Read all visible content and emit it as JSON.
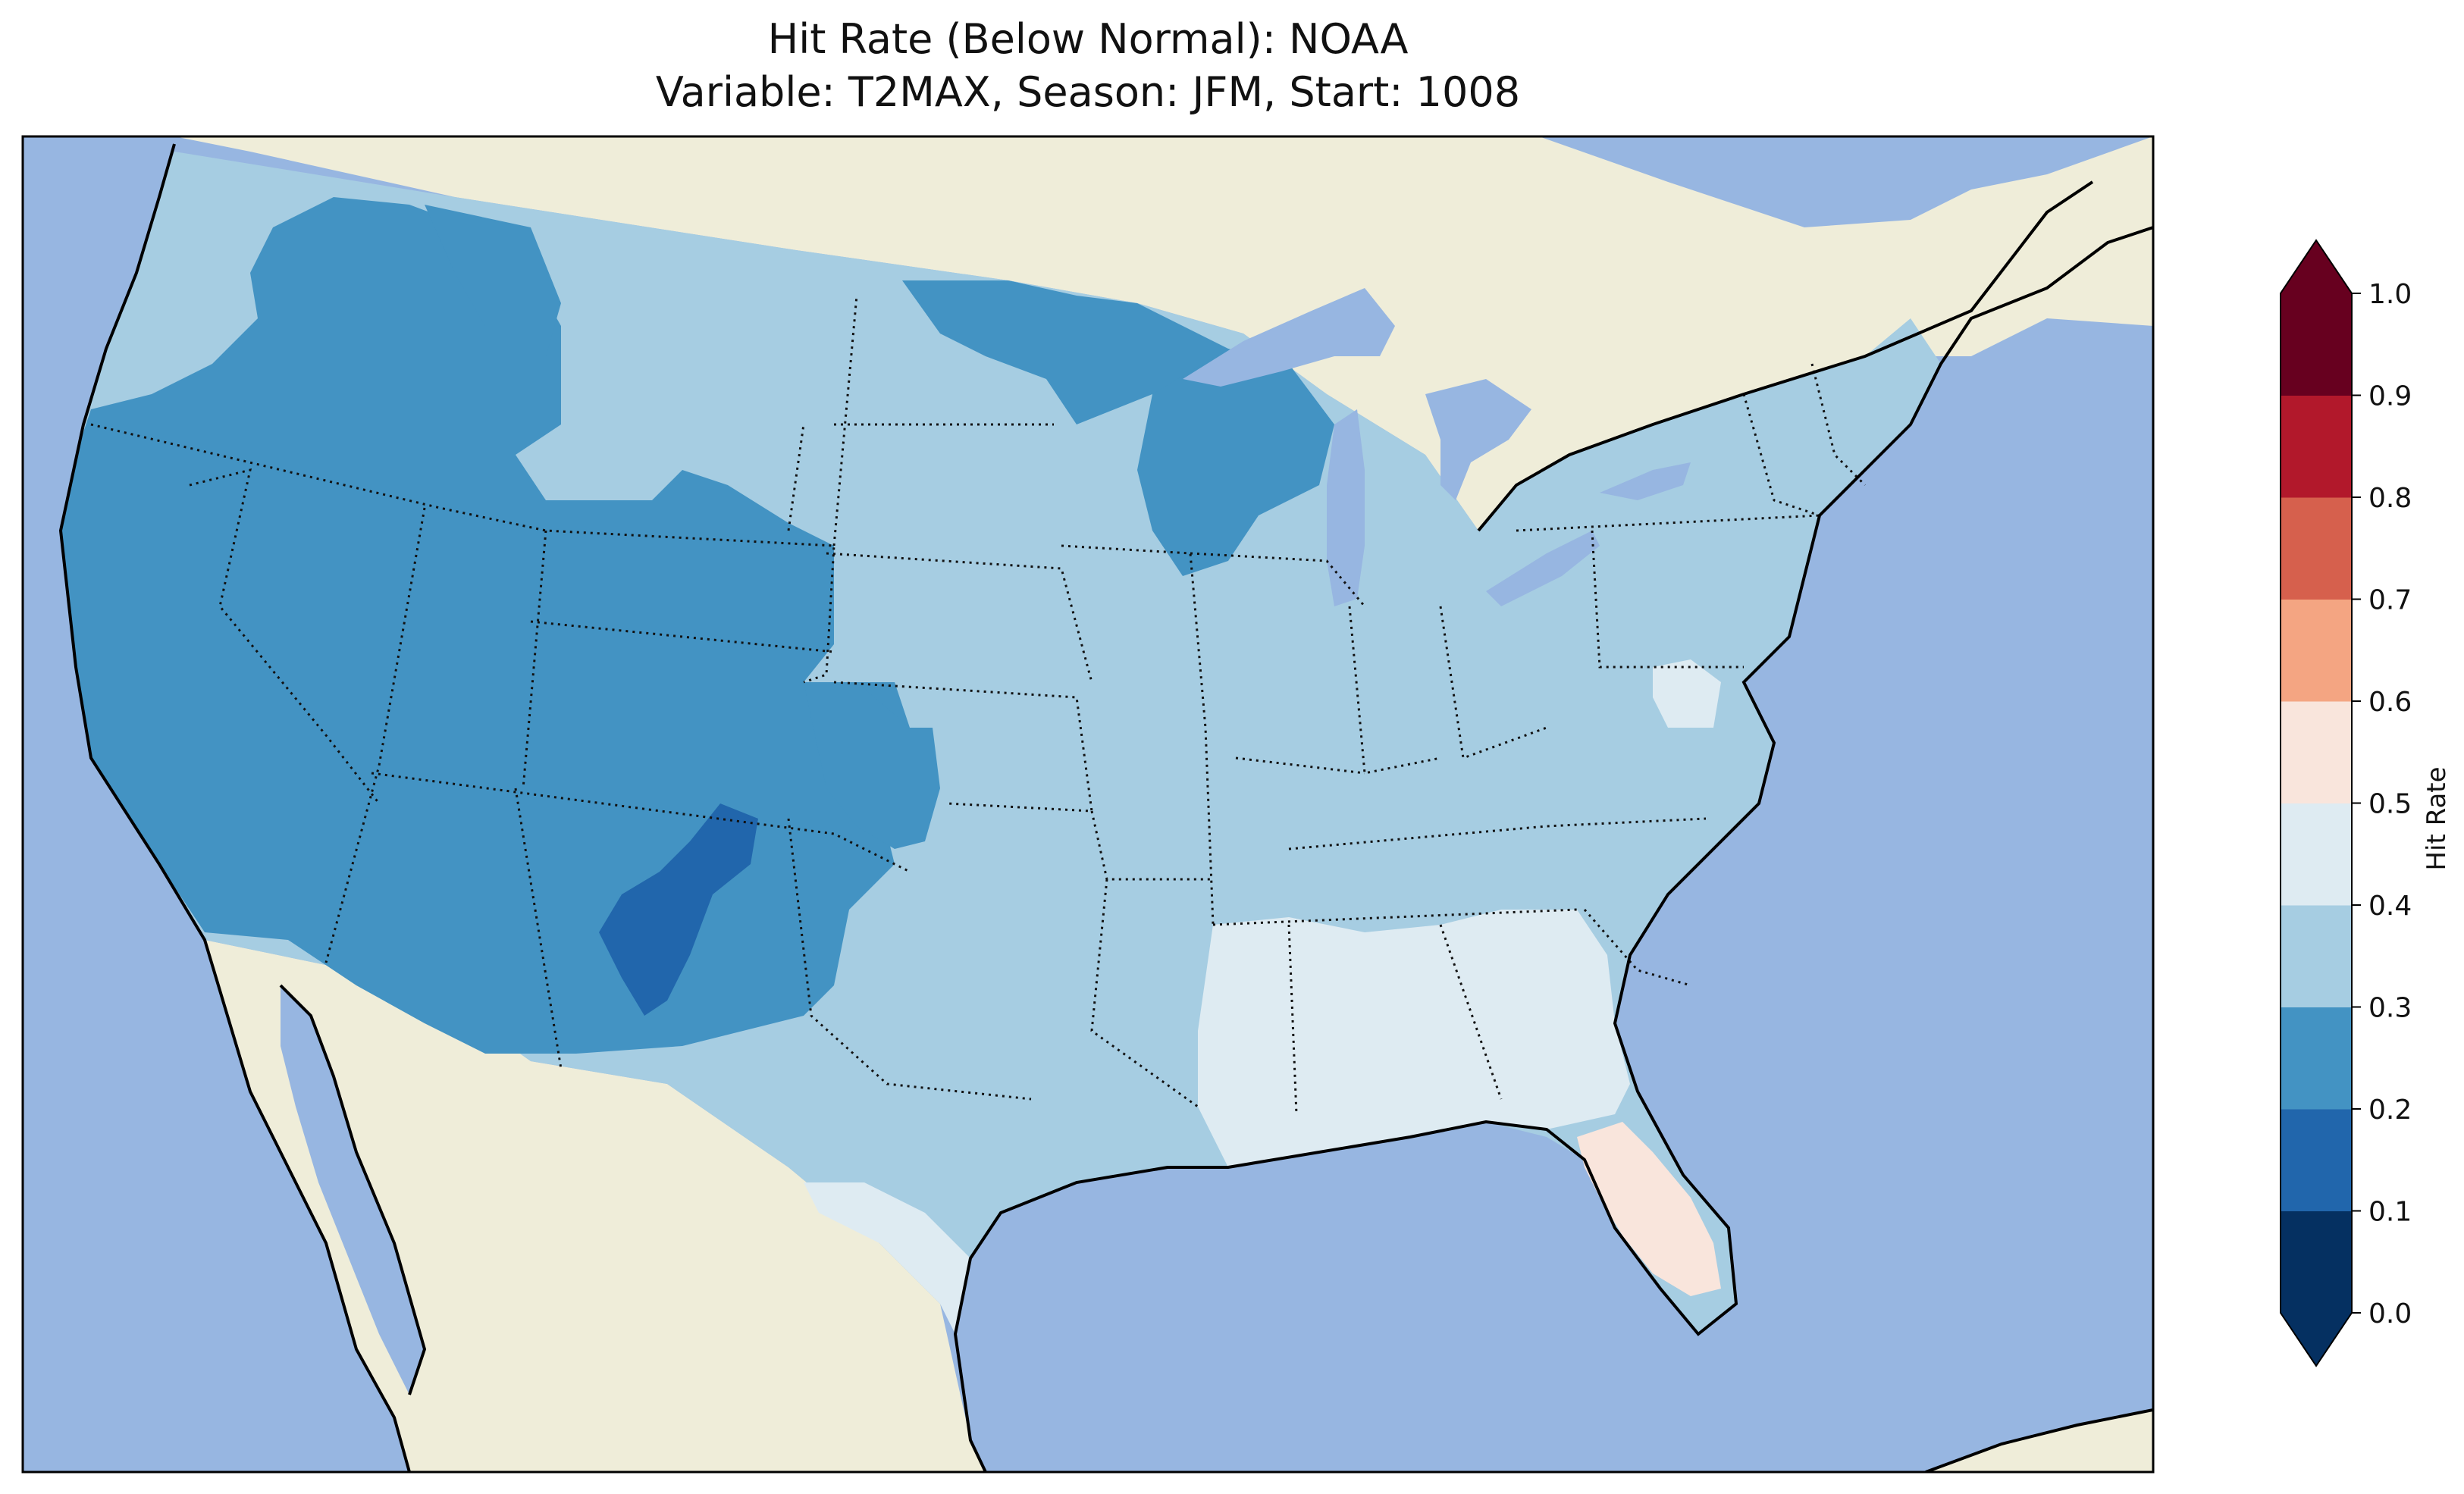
{
  "title": {
    "line1": "Hit Rate (Below Normal): NOAA",
    "line2": "Variable: T2MAX, Season: JFM, Start: 1008"
  },
  "colorbar": {
    "label": "Hit Rate",
    "ticks": [
      "0.0",
      "0.1",
      "0.2",
      "0.3",
      "0.4",
      "0.5",
      "0.6",
      "0.7",
      "0.8",
      "0.9",
      "1.0"
    ],
    "bins": [
      {
        "range": [
          0.0,
          0.1
        ],
        "color": "#053061"
      },
      {
        "range": [
          0.1,
          0.2
        ],
        "color": "#2166ac"
      },
      {
        "range": [
          0.2,
          0.3
        ],
        "color": "#4393c3"
      },
      {
        "range": [
          0.3,
          0.4
        ],
        "color": "#a6cde2"
      },
      {
        "range": [
          0.4,
          0.5
        ],
        "color": "#deebf2"
      },
      {
        "range": [
          0.5,
          0.6
        ],
        "color": "#f9e5dc"
      },
      {
        "range": [
          0.6,
          0.7
        ],
        "color": "#f4a582"
      },
      {
        "range": [
          0.7,
          0.8
        ],
        "color": "#d6604d"
      },
      {
        "range": [
          0.8,
          0.9
        ],
        "color": "#b2182b"
      },
      {
        "range": [
          0.9,
          1.0
        ],
        "color": "#67001f"
      }
    ],
    "extend": "both"
  },
  "map": {
    "region": "Contiguous United States",
    "ocean_color": "#97b6e1",
    "land_color": "#efedd9",
    "border_style": "dotted state lines, solid coastlines",
    "dominant_values": [
      {
        "area": "West / Southwest",
        "bin": "0.2-0.3"
      },
      {
        "area": "Northern New Mexico",
        "bin": "0.1-0.2"
      },
      {
        "area": "Central / Northeast",
        "bin": "0.3-0.4"
      },
      {
        "area": "Gulf Coast Southeast",
        "bin": "0.4-0.5"
      },
      {
        "area": "Central Florida",
        "bin": "0.5-0.6"
      }
    ]
  }
}
